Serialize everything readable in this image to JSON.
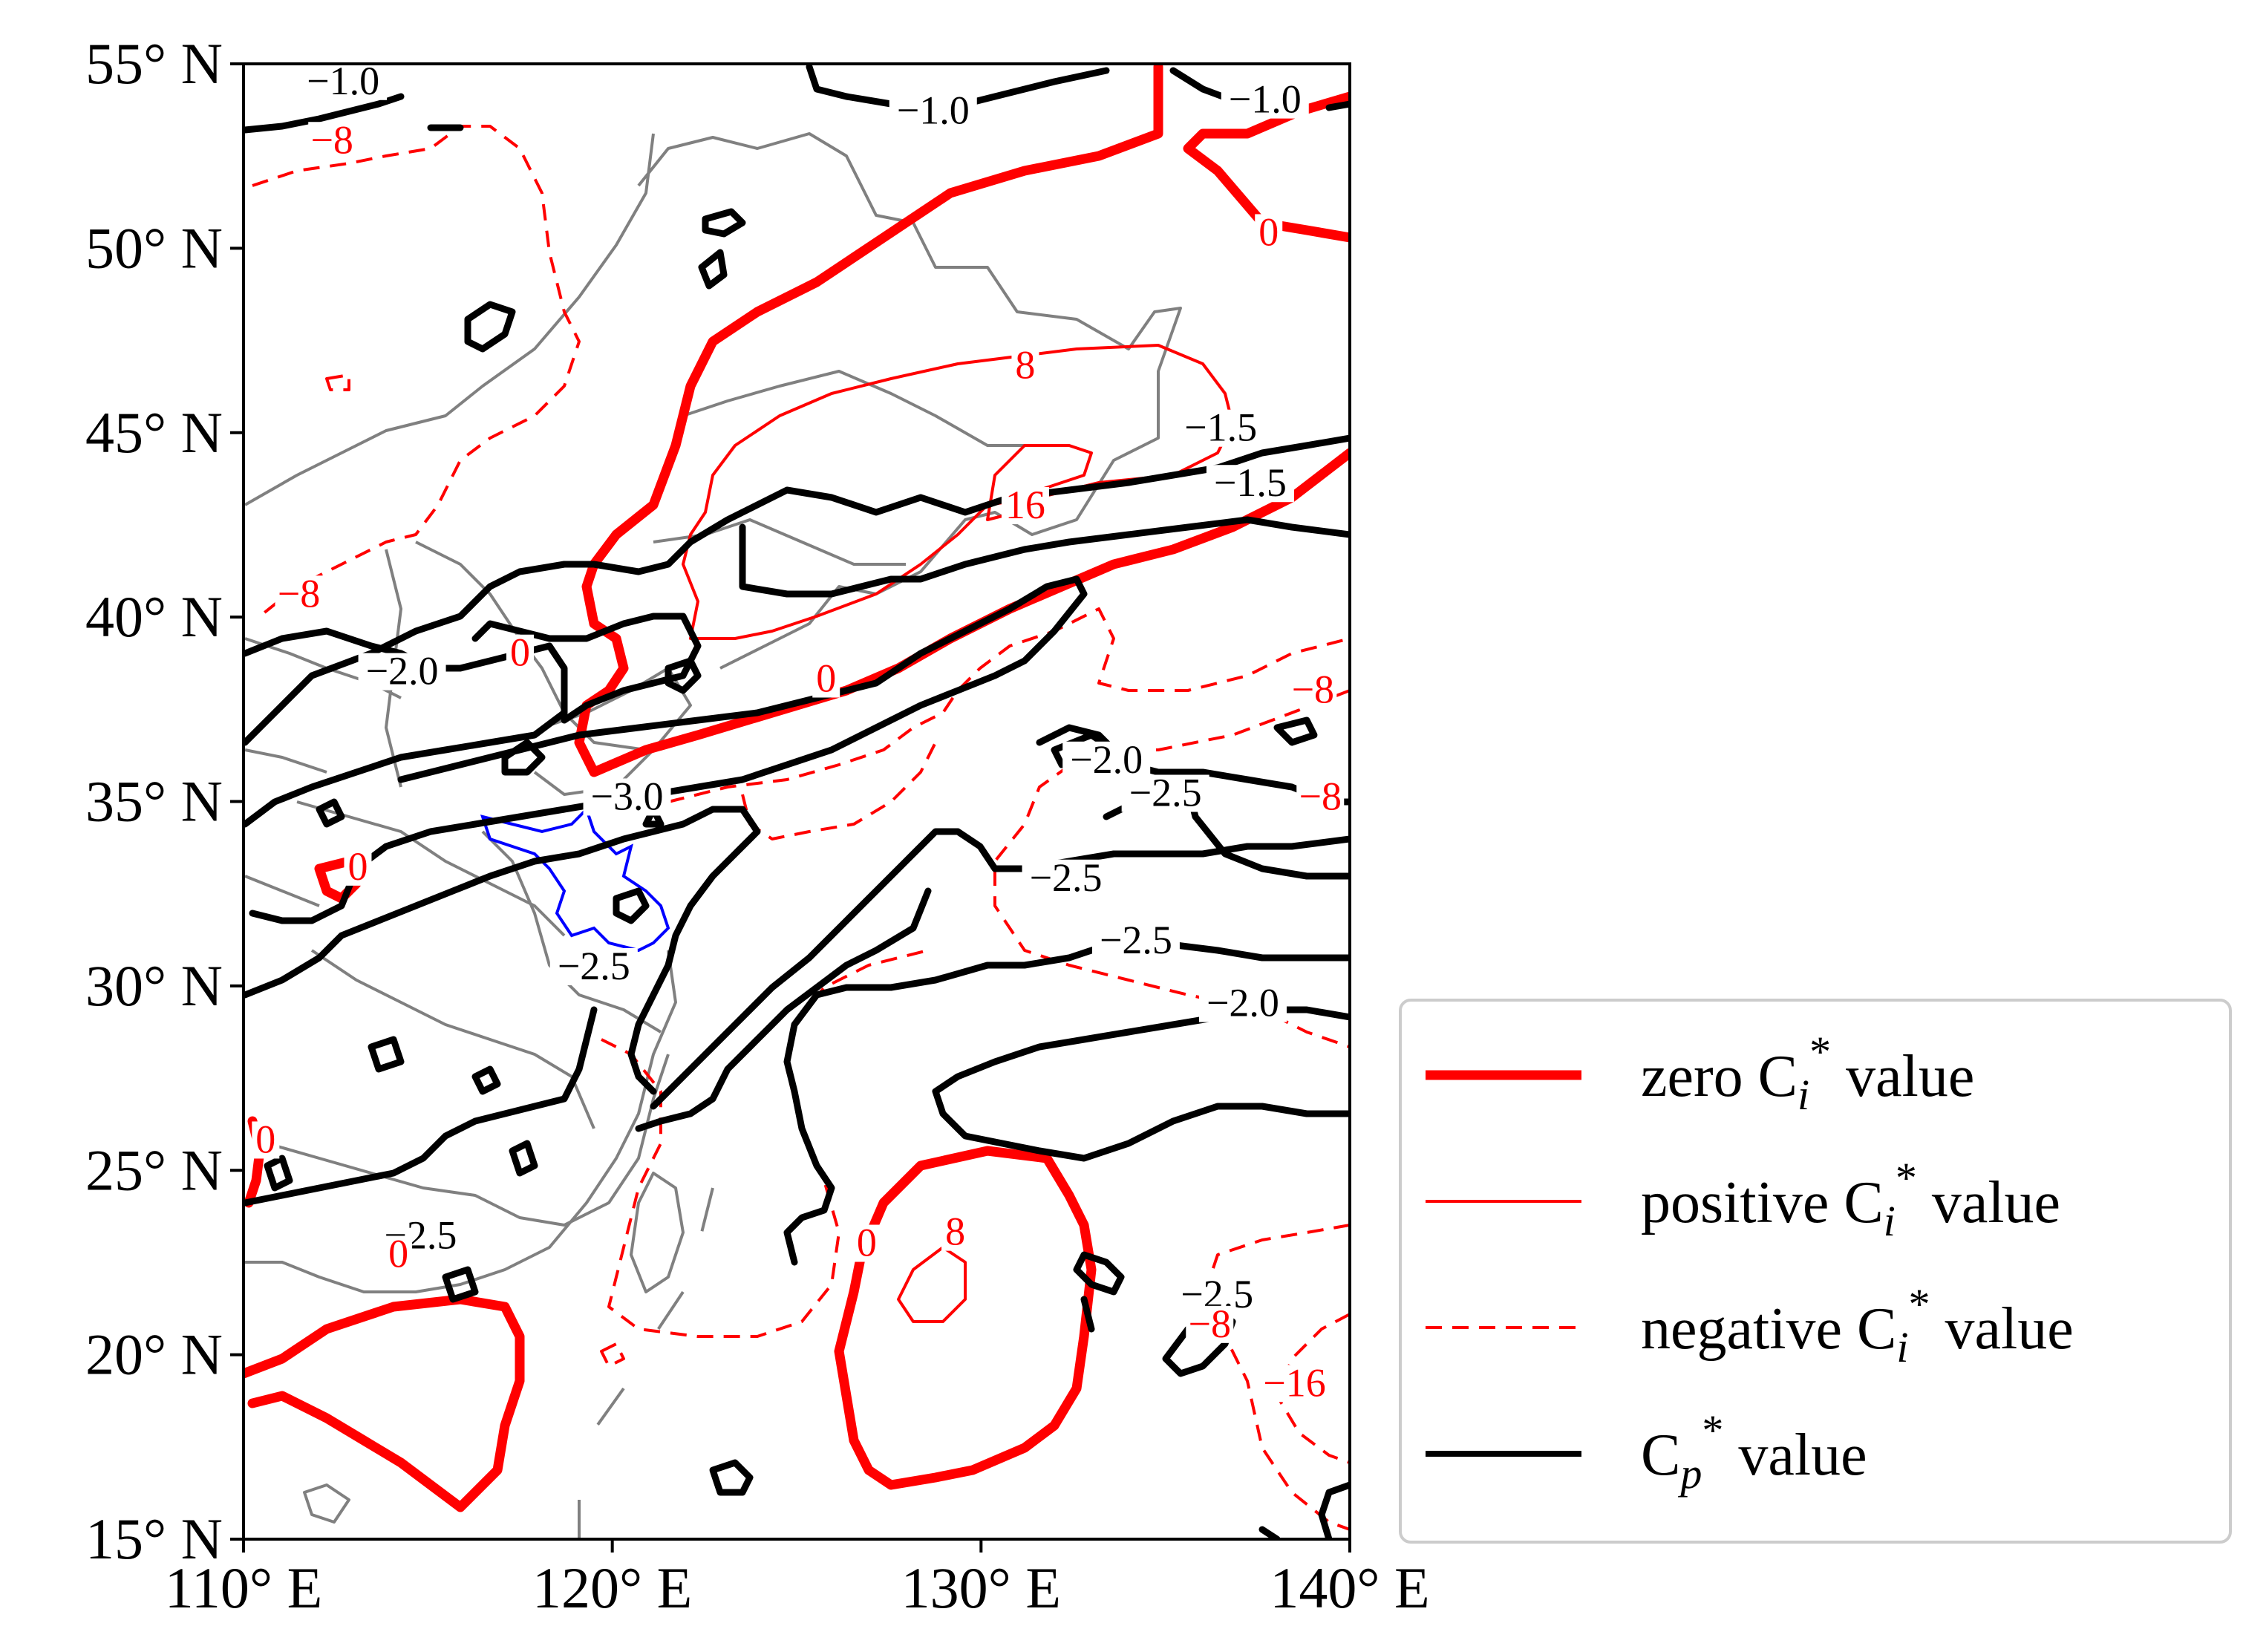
{
  "map": {
    "extent": {
      "lon_min": 110,
      "lon_max": 140,
      "lat_min": 15,
      "lat_max": 55
    },
    "x_ticks": [
      {
        "lon": 110,
        "label": "110° E"
      },
      {
        "lon": 120,
        "label": "120° E"
      },
      {
        "lon": 130,
        "label": "130° E"
      },
      {
        "lon": 140,
        "label": "140° E"
      }
    ],
    "y_ticks": [
      {
        "lat": 55,
        "label": "55° N"
      },
      {
        "lat": 50,
        "label": "50° N"
      },
      {
        "lat": 45,
        "label": "45° N"
      },
      {
        "lat": 40,
        "label": "40° N"
      },
      {
        "lat": 35,
        "label": "35° N"
      },
      {
        "lat": 30,
        "label": "30° N"
      },
      {
        "lat": 25,
        "label": "25° N"
      },
      {
        "lat": 20,
        "label": "20° N"
      },
      {
        "lat": 15,
        "label": "15° N"
      }
    ]
  },
  "colors": {
    "contour_ci": "#ff0000",
    "contour_cp": "#000000",
    "boundary": "#808080",
    "basin": "#0000ff"
  },
  "legend": {
    "items": [
      {
        "style": "zero",
        "text": "zero C",
        "sub": "i",
        "sup": "*",
        "tail": " value"
      },
      {
        "style": "positive",
        "text": "positive C",
        "sub": "i",
        "sup": "*",
        "tail": " value"
      },
      {
        "style": "negative",
        "text": "negative C",
        "sub": "i",
        "sup": "*",
        "tail": " value"
      },
      {
        "style": "cp",
        "text": "C",
        "sub": "p",
        "sup": "*",
        "tail": " value"
      }
    ]
  },
  "contour_labels": {
    "cp": [
      {
        "lon": 112.7,
        "lat": 54.3,
        "text": "−1.0"
      },
      {
        "lon": 128.7,
        "lat": 53.5,
        "text": "−1.0"
      },
      {
        "lon": 137.7,
        "lat": 53.8,
        "text": "−1.0"
      },
      {
        "lon": 136.5,
        "lat": 44.9,
        "text": "−1.5"
      },
      {
        "lon": 137.3,
        "lat": 43.4,
        "text": "−1.5"
      },
      {
        "lon": 114.3,
        "lat": 38.3,
        "text": "−2.0"
      },
      {
        "lon": 133.4,
        "lat": 35.9,
        "text": "−2.0"
      },
      {
        "lon": 120.4,
        "lat": 34.9,
        "text": "−3.0"
      },
      {
        "lon": 135.0,
        "lat": 35.0,
        "text": "−2.5"
      },
      {
        "lon": 132.3,
        "lat": 32.7,
        "text": "−2.5"
      },
      {
        "lon": 134.2,
        "lat": 31.0,
        "text": "−2.5"
      },
      {
        "lon": 119.5,
        "lat": 30.3,
        "text": "−2.5"
      },
      {
        "lon": 137.1,
        "lat": 29.3,
        "text": "−2.0"
      },
      {
        "lon": 114.8,
        "lat": 23.0,
        "text": "−2.5"
      },
      {
        "lon": 136.4,
        "lat": 21.4,
        "text": "−2.5"
      }
    ],
    "ci": [
      {
        "lon": 112.4,
        "lat": 52.7,
        "text": "−8"
      },
      {
        "lon": 137.8,
        "lat": 50.2,
        "text": "0"
      },
      {
        "lon": 131.2,
        "lat": 46.6,
        "text": "8"
      },
      {
        "lon": 131.2,
        "lat": 42.8,
        "text": "16"
      },
      {
        "lon": 111.5,
        "lat": 40.4,
        "text": "−8"
      },
      {
        "lon": 117.5,
        "lat": 38.8,
        "text": "0"
      },
      {
        "lon": 125.8,
        "lat": 38.1,
        "text": "0"
      },
      {
        "lon": 139.0,
        "lat": 37.8,
        "text": "−8"
      },
      {
        "lon": 139.2,
        "lat": 34.9,
        "text": "−8"
      },
      {
        "lon": 113.1,
        "lat": 33.0,
        "text": "0"
      },
      {
        "lon": 110.6,
        "lat": 25.6,
        "text": "0"
      },
      {
        "lon": 114.2,
        "lat": 22.5,
        "text": "0"
      },
      {
        "lon": 126.9,
        "lat": 22.8,
        "text": "0"
      },
      {
        "lon": 129.3,
        "lat": 23.1,
        "text": "8"
      },
      {
        "lon": 136.2,
        "lat": 20.6,
        "text": "−8"
      },
      {
        "lon": 138.5,
        "lat": 19.0,
        "text": "−16"
      }
    ]
  }
}
